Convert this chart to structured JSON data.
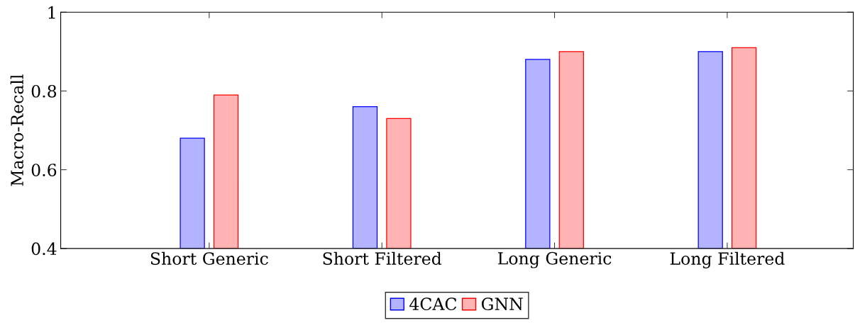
{
  "chart_data": {
    "type": "bar",
    "ylabel": "Macro-Recall",
    "categories": [
      "Short Generic",
      "Short Filtered",
      "Long Generic",
      "Long Filtered"
    ],
    "series": [
      {
        "name": "4CAC",
        "color": "#b3b3ff",
        "values": [
          0.68,
          0.76,
          0.88,
          0.9
        ]
      },
      {
        "name": "GNN",
        "color": "#ffb3b3",
        "values": [
          0.79,
          0.73,
          0.9,
          0.91
        ]
      }
    ],
    "ylim": [
      0.4,
      1
    ],
    "yticks": [
      0.4,
      0.6,
      0.8,
      1
    ],
    "grid": false,
    "legend": "bottom"
  }
}
